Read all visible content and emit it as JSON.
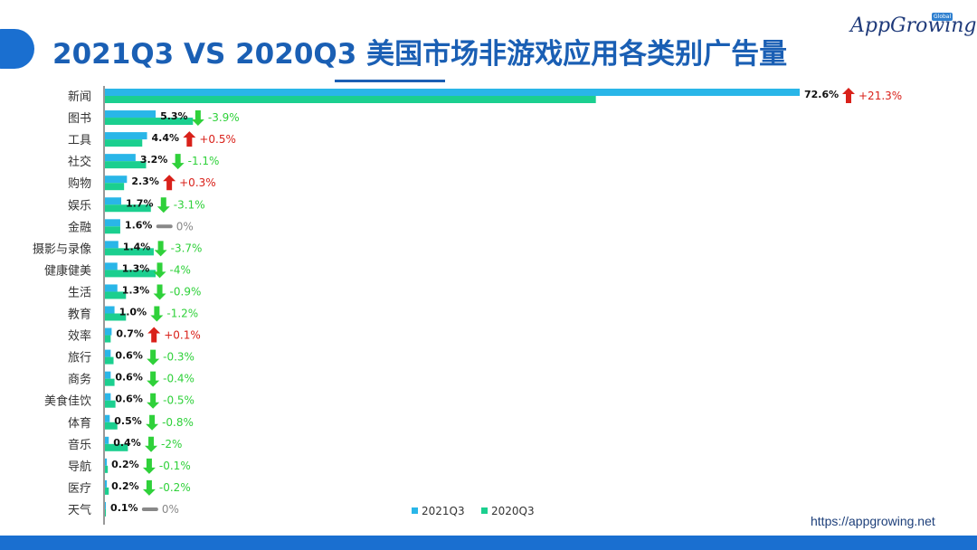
{
  "title": "2021Q3 VS 2020Q3 美国市场非游戏应用各类别广告量",
  "logo": {
    "text": "AppGrowing",
    "badge": "Global"
  },
  "website": "https://appgrowing.net",
  "colors": {
    "series1": "#29b6e8",
    "series2": "#1bcf8f",
    "up": "#d9211a",
    "down": "#2fd13a",
    "flat": "#888888",
    "title": "#1a5fb4"
  },
  "chart_data": {
    "type": "bar",
    "orientation": "horizontal",
    "categories": [
      "新闻",
      "图书",
      "工具",
      "社交",
      "购物",
      "娱乐",
      "金融",
      "摄影与录像",
      "健康健美",
      "生活",
      "教育",
      "效率",
      "旅行",
      "商务",
      "美食佳饮",
      "体育",
      "音乐",
      "导航",
      "医疗",
      "天气"
    ],
    "series": [
      {
        "name": "2021Q3",
        "values": [
          72.6,
          5.3,
          4.4,
          3.2,
          2.3,
          1.7,
          1.6,
          1.4,
          1.3,
          1.3,
          1.0,
          0.7,
          0.6,
          0.6,
          0.6,
          0.5,
          0.4,
          0.2,
          0.2,
          0.1
        ]
      },
      {
        "name": "2020Q3",
        "values": [
          51.3,
          9.2,
          3.9,
          4.3,
          2.0,
          4.8,
          1.6,
          5.1,
          5.3,
          2.2,
          2.2,
          0.6,
          0.9,
          1.0,
          1.1,
          1.3,
          2.4,
          0.3,
          0.4,
          0.1
        ]
      }
    ],
    "value_labels": [
      "72.6%",
      "5.3%",
      "4.4%",
      "3.2%",
      "2.3%",
      "1.7%",
      "1.6%",
      "1.4%",
      "1.3%",
      "1.3%",
      "1.0%",
      "0.7%",
      "0.6%",
      "0.6%",
      "0.6%",
      "0.5%",
      "0.4%",
      "0.2%",
      "0.2%",
      "0.1%"
    ],
    "changes": [
      "+21.3%",
      "-3.9%",
      "+0.5%",
      "-1.1%",
      "+0.3%",
      "-3.1%",
      "0%",
      "-3.7%",
      "-4%",
      "-0.9%",
      "-1.2%",
      "+0.1%",
      "-0.3%",
      "-0.4%",
      "-0.5%",
      "-0.8%",
      "-2%",
      "-0.1%",
      "-0.2%",
      "0%"
    ],
    "legend": [
      "2021Q3",
      "2020Q3"
    ],
    "legend_position": "bottom",
    "xlim": [
      0,
      73
    ],
    "grid": false
  }
}
